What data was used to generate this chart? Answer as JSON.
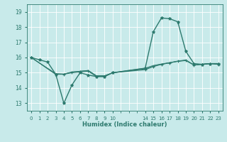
{
  "xlabel": "Humidex (Indice chaleur)",
  "bg_color": "#c8eaea",
  "grid_color": "#ffffff",
  "line_color": "#2d7a6e",
  "ylim": [
    12.5,
    19.5
  ],
  "xlim": [
    -0.5,
    23.5
  ],
  "yticks": [
    13,
    14,
    15,
    16,
    17,
    18,
    19
  ],
  "xticks": [
    0,
    1,
    2,
    3,
    4,
    5,
    6,
    7,
    8,
    9,
    10,
    14,
    15,
    16,
    17,
    18,
    19,
    20,
    21,
    22,
    23
  ],
  "series": [
    {
      "x": [
        0,
        1,
        2,
        3,
        4,
        5,
        6,
        7,
        8,
        9,
        10,
        14,
        15,
        16,
        17,
        18,
        19,
        20,
        21,
        22,
        23
      ],
      "y": [
        16.0,
        15.85,
        15.7,
        14.9,
        13.0,
        14.2,
        15.0,
        14.85,
        14.75,
        14.75,
        15.0,
        15.3,
        17.7,
        18.6,
        18.55,
        18.35,
        16.4,
        15.6,
        15.55,
        15.6,
        15.6
      ],
      "marker": "*",
      "lw": 1.0
    },
    {
      "x": [
        0,
        3,
        4,
        5,
        6,
        7,
        8,
        9,
        10,
        14,
        15,
        16,
        17,
        18,
        19,
        20,
        21,
        22,
        23
      ],
      "y": [
        16.0,
        14.9,
        14.9,
        15.0,
        15.05,
        15.1,
        14.75,
        14.75,
        15.0,
        15.2,
        15.4,
        15.55,
        15.65,
        15.75,
        15.8,
        15.5,
        15.55,
        15.6,
        15.55
      ],
      "marker": "+",
      "lw": 0.8
    },
    {
      "x": [
        0,
        3,
        4,
        5,
        6,
        7,
        8,
        9,
        10,
        14,
        15,
        16,
        17,
        18,
        19,
        20,
        21,
        22,
        23
      ],
      "y": [
        16.0,
        14.9,
        14.9,
        15.05,
        15.1,
        15.15,
        14.8,
        14.8,
        15.0,
        15.25,
        15.45,
        15.55,
        15.65,
        15.75,
        15.82,
        15.5,
        15.55,
        15.6,
        15.55
      ],
      "marker": null,
      "lw": 0.7
    },
    {
      "x": [
        0,
        3,
        4,
        5,
        6,
        7,
        8,
        9,
        10,
        14,
        15,
        16,
        17,
        18,
        19,
        20,
        21,
        22,
        23
      ],
      "y": [
        16.0,
        14.95,
        14.92,
        15.05,
        15.1,
        15.15,
        14.8,
        14.8,
        15.0,
        15.3,
        15.48,
        15.58,
        15.67,
        15.77,
        15.84,
        15.52,
        15.57,
        15.61,
        15.57
      ],
      "marker": null,
      "lw": 0.6
    }
  ]
}
